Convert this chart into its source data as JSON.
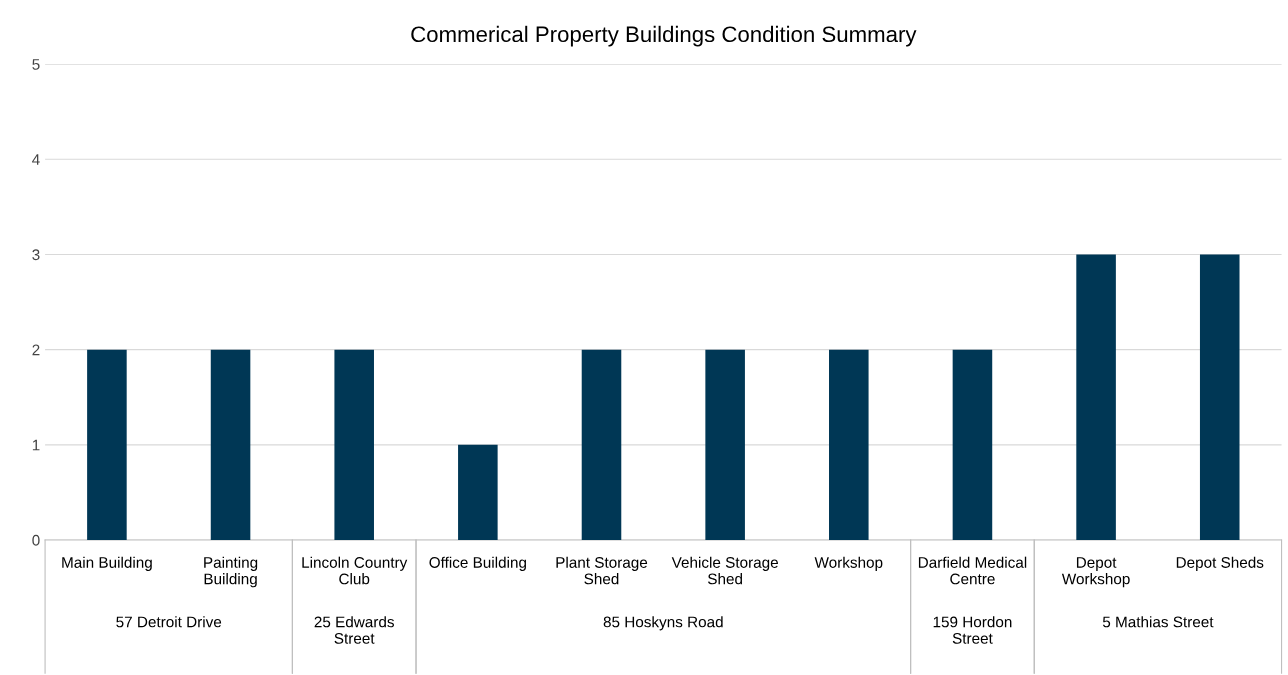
{
  "chart_data": {
    "type": "bar",
    "title": "Commerical Property Buildings Condition Summary",
    "categories": [
      "Main Building",
      "Painting\nBuilding",
      "Lincoln Country\nClub",
      "Office Building",
      "Plant Storage\nShed",
      "Vehicle Storage\nShed",
      "Workshop",
      "Darfield Medical\nCentre",
      "Depot\nWorkshop",
      "Depot Sheds"
    ],
    "values": [
      2,
      2,
      2,
      1,
      2,
      2,
      2,
      2,
      3,
      3
    ],
    "color": "#003755",
    "ylim": [
      0,
      5
    ],
    "yticks": [
      0,
      1,
      2,
      3,
      4,
      5
    ],
    "grid": "y",
    "annotations": [
      "57 Detroit Drive",
      "25 Edwards\nStreet",
      "85 Hoskyns Road",
      "159 Hordon\nStreet",
      "5 Mathias Street"
    ]
  }
}
